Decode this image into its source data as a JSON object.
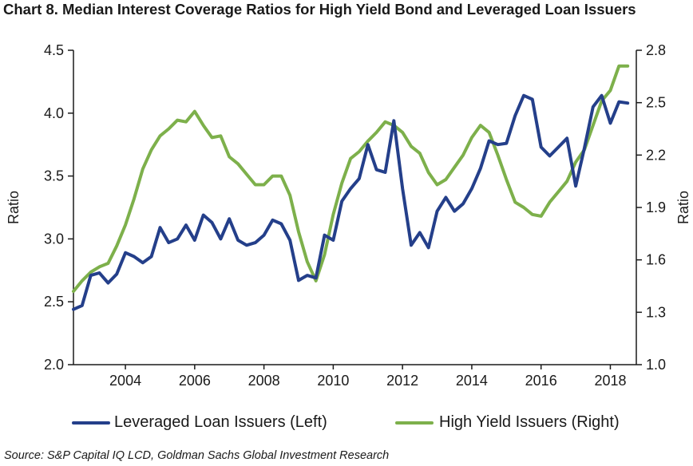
{
  "title": "Chart 8.  Median Interest Coverage Ratios for High Yield Bond and Leveraged Loan Issuers",
  "source": "Source: S&P Capital IQ LCD, Goldman Sachs Global Investment Research",
  "chart_data": {
    "type": "line",
    "title": "Chart 8.  Median Interest Coverage Ratios for High Yield Bond and Leveraged Loan Issuers",
    "ylabel_left": "Ratio",
    "ylabel_right": "Ratio",
    "xlim": [
      2002.5,
      2018.75
    ],
    "ylim_left": [
      2.0,
      4.5
    ],
    "ylim_right": [
      1.0,
      2.8
    ],
    "x_ticks": [
      "2004",
      "2006",
      "2008",
      "2010",
      "2012",
      "2014",
      "2016",
      "2018"
    ],
    "y_ticks_left": [
      "2.0",
      "2.5",
      "3.0",
      "3.5",
      "4.0",
      "4.5"
    ],
    "y_ticks_right": [
      "1.0",
      "1.3",
      "1.6",
      "1.9",
      "2.2",
      "2.5",
      "2.8"
    ],
    "grid": false,
    "legend_position": "bottom",
    "series": [
      {
        "name": "Leveraged Loan Issuers (Left)",
        "axis": "left",
        "color": "#243f8a",
        "x": [
          2002.5,
          2002.75,
          2003.0,
          2003.25,
          2003.5,
          2003.75,
          2004.0,
          2004.25,
          2004.5,
          2004.75,
          2005.0,
          2005.25,
          2005.5,
          2005.75,
          2006.0,
          2006.25,
          2006.5,
          2006.75,
          2007.0,
          2007.25,
          2007.5,
          2007.75,
          2008.0,
          2008.25,
          2008.5,
          2008.75,
          2009.0,
          2009.25,
          2009.5,
          2009.75,
          2010.0,
          2010.25,
          2010.5,
          2010.75,
          2011.0,
          2011.25,
          2011.5,
          2011.75,
          2012.0,
          2012.25,
          2012.5,
          2012.75,
          2013.0,
          2013.25,
          2013.5,
          2013.75,
          2014.0,
          2014.25,
          2014.5,
          2014.75,
          2015.0,
          2015.25,
          2015.5,
          2015.75,
          2016.0,
          2016.25,
          2016.5,
          2016.75,
          2017.0,
          2017.25,
          2017.5,
          2017.75,
          2018.0,
          2018.25,
          2018.5
        ],
        "values": [
          2.44,
          2.47,
          2.71,
          2.73,
          2.65,
          2.72,
          2.89,
          2.86,
          2.81,
          2.86,
          3.09,
          2.97,
          3.0,
          3.11,
          2.99,
          3.19,
          3.13,
          3.0,
          3.16,
          2.99,
          2.95,
          2.97,
          3.03,
          3.15,
          3.12,
          2.99,
          2.67,
          2.71,
          2.69,
          3.03,
          2.99,
          3.3,
          3.4,
          3.48,
          3.75,
          3.55,
          3.53,
          3.94,
          3.4,
          2.95,
          3.05,
          2.93,
          3.22,
          3.33,
          3.22,
          3.28,
          3.4,
          3.56,
          3.78,
          3.75,
          3.76,
          3.98,
          4.14,
          4.11,
          3.73,
          3.66,
          3.73,
          3.8,
          3.42,
          3.72,
          4.05,
          4.14,
          3.92,
          4.09,
          4.08
        ]
      },
      {
        "name": "High Yield Issuers (Right)",
        "axis": "right",
        "color": "#7db04b",
        "x": [
          2002.5,
          2002.75,
          2003.0,
          2003.25,
          2003.5,
          2003.75,
          2004.0,
          2004.25,
          2004.5,
          2004.75,
          2005.0,
          2005.25,
          2005.5,
          2005.75,
          2006.0,
          2006.25,
          2006.5,
          2006.75,
          2007.0,
          2007.25,
          2007.5,
          2007.75,
          2008.0,
          2008.25,
          2008.5,
          2008.75,
          2009.0,
          2009.25,
          2009.5,
          2009.75,
          2010.0,
          2010.25,
          2010.5,
          2010.75,
          2011.0,
          2011.25,
          2011.5,
          2011.75,
          2012.0,
          2012.25,
          2012.5,
          2012.75,
          2013.0,
          2013.25,
          2013.5,
          2013.75,
          2014.0,
          2014.25,
          2014.5,
          2014.75,
          2015.0,
          2015.25,
          2015.5,
          2015.75,
          2016.0,
          2016.25,
          2016.5,
          2016.75,
          2017.0,
          2017.25,
          2017.5,
          2017.75,
          2018.0,
          2018.25,
          2018.5
        ],
        "values": [
          1.42,
          1.48,
          1.53,
          1.56,
          1.58,
          1.68,
          1.8,
          1.95,
          2.12,
          2.23,
          2.31,
          2.35,
          2.4,
          2.39,
          2.45,
          2.37,
          2.3,
          2.31,
          2.19,
          2.15,
          2.09,
          2.03,
          2.03,
          2.08,
          2.08,
          1.97,
          1.76,
          1.59,
          1.48,
          1.63,
          1.86,
          2.04,
          2.18,
          2.22,
          2.28,
          2.33,
          2.39,
          2.37,
          2.33,
          2.25,
          2.21,
          2.1,
          2.03,
          2.06,
          2.13,
          2.2,
          2.3,
          2.37,
          2.33,
          2.2,
          2.06,
          1.93,
          1.9,
          1.86,
          1.85,
          1.93,
          1.99,
          2.05,
          2.16,
          2.23,
          2.37,
          2.51,
          2.57,
          2.71,
          2.71
        ]
      }
    ]
  }
}
